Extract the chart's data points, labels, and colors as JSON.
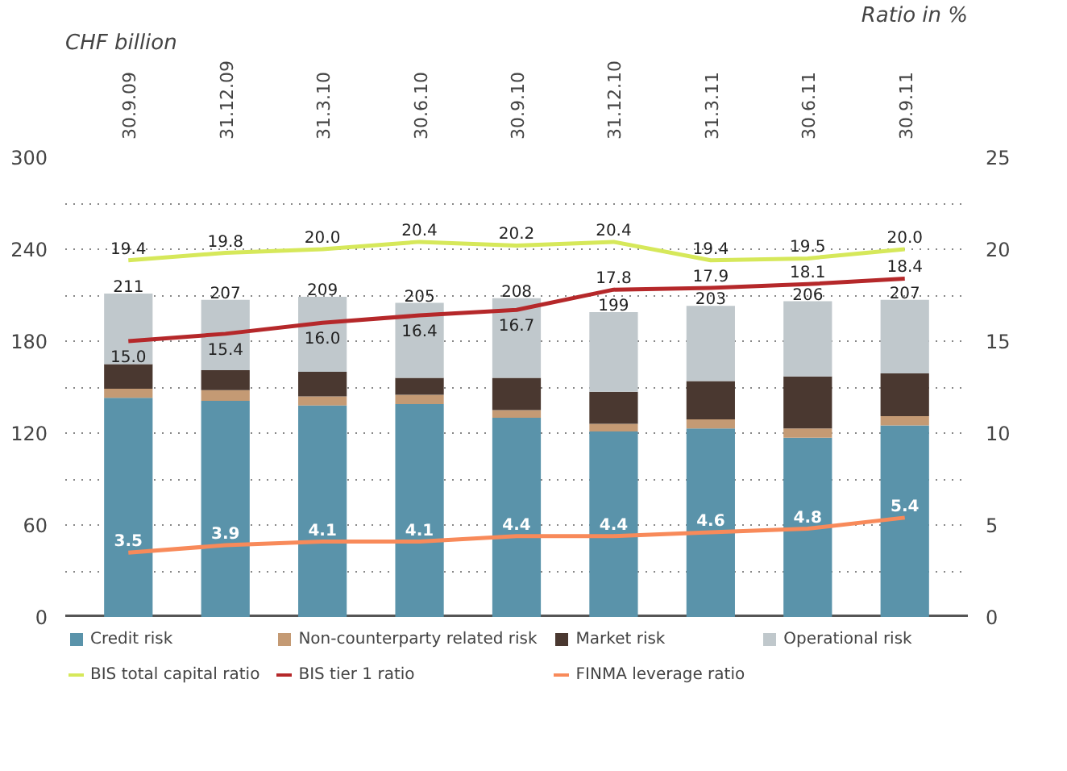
{
  "chart_data": {
    "type": "bar",
    "stacked": true,
    "categories": [
      "30.9.09",
      "31.12.09",
      "31.3.10",
      "30.6.10",
      "30.9.10",
      "31.12.10",
      "31.3.11",
      "30.6.11",
      "30.9.11"
    ],
    "ylabel": "CHF billion",
    "y2label": "Ratio in %",
    "series": [
      {
        "name": "Credit risk",
        "color": "#5a93aa",
        "values": [
          143,
          141,
          138,
          139,
          130,
          121,
          123,
          117,
          125
        ]
      },
      {
        "name": "Non-counterparty related risk",
        "color": "#c49a74",
        "values": [
          6,
          7,
          6,
          6,
          5,
          5,
          6,
          6,
          6
        ]
      },
      {
        "name": "Market risk",
        "color": "#4a3830",
        "values": [
          16,
          13,
          16,
          11,
          21,
          21,
          25,
          34,
          28
        ]
      },
      {
        "name": "Operational risk",
        "color": "#c0c8cc",
        "values": [
          46,
          46,
          49,
          49,
          52,
          52,
          49,
          49,
          48
        ]
      },
      {
        "name": "BIS total capital ratio",
        "type": "line",
        "axis": "y2",
        "color": "#d6e85a",
        "values": [
          19.4,
          19.8,
          20.0,
          20.4,
          20.2,
          20.4,
          19.4,
          19.5,
          20.0
        ],
        "value_labels": [
          "19.4",
          "19.8",
          "20.0",
          "20.4",
          "20.2",
          "20.4",
          "19.4",
          "19.5",
          "20.0"
        ]
      },
      {
        "name": "BIS tier 1 ratio",
        "type": "line",
        "axis": "y2",
        "color": "#b5282a",
        "values": [
          15.0,
          15.4,
          16.0,
          16.4,
          16.7,
          17.8,
          17.9,
          18.1,
          18.4
        ],
        "value_labels": [
          "15.0",
          "15.4",
          "16.0",
          "16.4",
          "16.7",
          "17.8",
          "17.9",
          "18.1",
          "18.4"
        ]
      },
      {
        "name": "FINMA leverage ratio",
        "type": "line",
        "axis": "y2",
        "color": "#f88a5a",
        "values": [
          3.5,
          3.9,
          4.1,
          4.1,
          4.4,
          4.4,
          4.6,
          4.8,
          5.4
        ],
        "value_labels": [
          "3.5",
          "3.9",
          "4.1",
          "4.1",
          "4.4",
          "4.4",
          "4.6",
          "4.8",
          "5.4"
        ]
      }
    ],
    "totals": [
      "211",
      "207",
      "209",
      "205",
      "208",
      "199",
      "203",
      "206",
      "207"
    ],
    "ylim": [
      0,
      300
    ],
    "yticks": [
      0,
      {
        "value": 30,
        "label": null
      },
      60,
      {
        "value": 90,
        "label": null
      },
      120,
      {
        "value": 150,
        "label": null
      },
      180,
      {
        "value": 210,
        "label": null
      },
      240,
      {
        "value": 270,
        "label": null
      },
      300
    ],
    "y2lim": [
      0,
      25
    ],
    "y2ticks": [
      0,
      5,
      10,
      15,
      20,
      25
    ],
    "grid": "y",
    "legend": "bottom"
  }
}
